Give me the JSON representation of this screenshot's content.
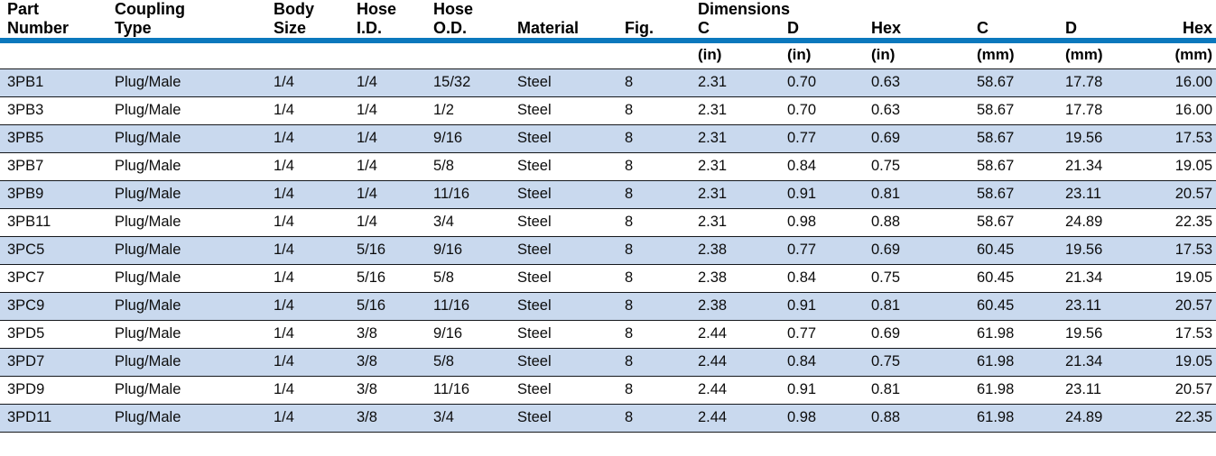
{
  "colors": {
    "accent_blue": "#0b78bd",
    "row_stripe_blue": "#c9d9ee",
    "separator_dark": "#15181c",
    "text_black": "#0c0c0c"
  },
  "table": {
    "dimensions_group_label": "Dimensions",
    "columns": [
      {
        "id": "part_number",
        "line1": "Part",
        "line2": "Number",
        "unit": ""
      },
      {
        "id": "coupling_type",
        "line1": "Coupling",
        "line2": "Type",
        "unit": ""
      },
      {
        "id": "body_size",
        "line1": "Body",
        "line2": "Size",
        "unit": ""
      },
      {
        "id": "hose_id",
        "line1": "Hose",
        "line2": "I.D.",
        "unit": ""
      },
      {
        "id": "hose_od",
        "line1": "Hose",
        "line2": "O.D.",
        "unit": ""
      },
      {
        "id": "material",
        "line1": "",
        "line2": "Material",
        "unit": ""
      },
      {
        "id": "fig",
        "line1": "",
        "line2": "Fig.",
        "unit": ""
      },
      {
        "id": "c_in",
        "line1": "",
        "line2": "C",
        "unit": "(in)"
      },
      {
        "id": "d_in",
        "line1": "",
        "line2": "D",
        "unit": "(in)"
      },
      {
        "id": "hex_in",
        "line1": "",
        "line2": "Hex",
        "unit": "(in)"
      },
      {
        "id": "c_mm",
        "line1": "",
        "line2": "C",
        "unit": "(mm)"
      },
      {
        "id": "d_mm",
        "line1": "",
        "line2": "D",
        "unit": "(mm)"
      },
      {
        "id": "hex_mm",
        "line1": "",
        "line2": "Hex",
        "unit": "(mm)"
      }
    ],
    "rows": [
      [
        "3PB1",
        "Plug/Male",
        "1/4",
        "1/4",
        "15/32",
        "Steel",
        "8",
        "2.31",
        "0.70",
        "0.63",
        "58.67",
        "17.78",
        "16.00"
      ],
      [
        "3PB3",
        "Plug/Male",
        "1/4",
        "1/4",
        "1/2",
        "Steel",
        "8",
        "2.31",
        "0.70",
        "0.63",
        "58.67",
        "17.78",
        "16.00"
      ],
      [
        "3PB5",
        "Plug/Male",
        "1/4",
        "1/4",
        "9/16",
        "Steel",
        "8",
        "2.31",
        "0.77",
        "0.69",
        "58.67",
        "19.56",
        "17.53"
      ],
      [
        "3PB7",
        "Plug/Male",
        "1/4",
        "1/4",
        "5/8",
        "Steel",
        "8",
        "2.31",
        "0.84",
        "0.75",
        "58.67",
        "21.34",
        "19.05"
      ],
      [
        "3PB9",
        "Plug/Male",
        "1/4",
        "1/4",
        "11/16",
        "Steel",
        "8",
        "2.31",
        "0.91",
        "0.81",
        "58.67",
        "23.11",
        "20.57"
      ],
      [
        "3PB11",
        "Plug/Male",
        "1/4",
        "1/4",
        "3/4",
        "Steel",
        "8",
        "2.31",
        "0.98",
        "0.88",
        "58.67",
        "24.89",
        "22.35"
      ],
      [
        "3PC5",
        "Plug/Male",
        "1/4",
        "5/16",
        "9/16",
        "Steel",
        "8",
        "2.38",
        "0.77",
        "0.69",
        "60.45",
        "19.56",
        "17.53"
      ],
      [
        "3PC7",
        "Plug/Male",
        "1/4",
        "5/16",
        "5/8",
        "Steel",
        "8",
        "2.38",
        "0.84",
        "0.75",
        "60.45",
        "21.34",
        "19.05"
      ],
      [
        "3PC9",
        "Plug/Male",
        "1/4",
        "5/16",
        "11/16",
        "Steel",
        "8",
        "2.38",
        "0.91",
        "0.81",
        "60.45",
        "23.11",
        "20.57"
      ],
      [
        "3PD5",
        "Plug/Male",
        "1/4",
        "3/8",
        "9/16",
        "Steel",
        "8",
        "2.44",
        "0.77",
        "0.69",
        "61.98",
        "19.56",
        "17.53"
      ],
      [
        "3PD7",
        "Plug/Male",
        "1/4",
        "3/8",
        "5/8",
        "Steel",
        "8",
        "2.44",
        "0.84",
        "0.75",
        "61.98",
        "21.34",
        "19.05"
      ],
      [
        "3PD9",
        "Plug/Male",
        "1/4",
        "3/8",
        "11/16",
        "Steel",
        "8",
        "2.44",
        "0.91",
        "0.81",
        "61.98",
        "23.11",
        "20.57"
      ],
      [
        "3PD11",
        "Plug/Male",
        "1/4",
        "3/8",
        "3/4",
        "Steel",
        "8",
        "2.44",
        "0.98",
        "0.88",
        "61.98",
        "24.89",
        "22.35"
      ]
    ]
  }
}
